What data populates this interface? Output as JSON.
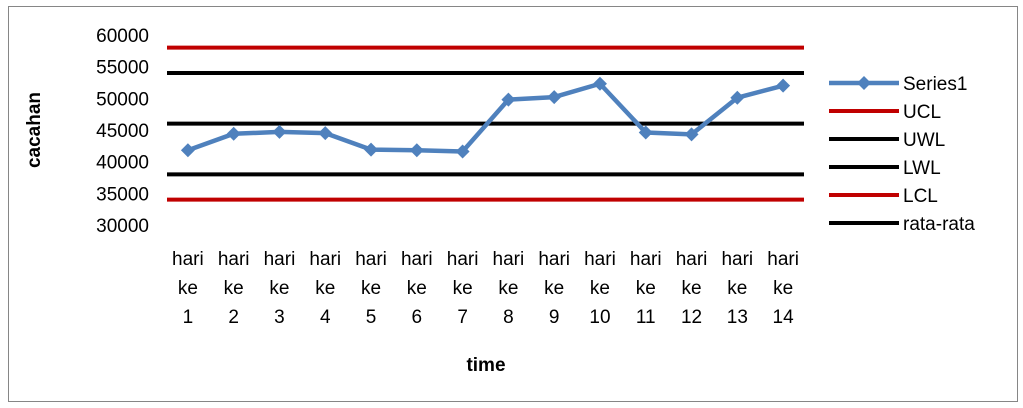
{
  "chart_data": {
    "type": "line",
    "title": "",
    "xlabel": "time",
    "ylabel": "cacahan",
    "ylim": [
      30000,
      60000
    ],
    "yticks": [
      30000,
      35000,
      40000,
      45000,
      50000,
      55000,
      60000
    ],
    "grid": false,
    "legend": "right",
    "categories": [
      [
        "hari",
        "ke",
        "1"
      ],
      [
        "hari",
        "ke",
        "2"
      ],
      [
        "hari",
        "ke",
        "3"
      ],
      [
        "hari",
        "ke",
        "4"
      ],
      [
        "hari",
        "ke",
        "5"
      ],
      [
        "hari",
        "ke",
        "6"
      ],
      [
        "hari",
        "ke",
        "7"
      ],
      [
        "hari",
        "ke",
        "8"
      ],
      [
        "hari",
        "ke",
        "9"
      ],
      [
        "hari",
        "ke",
        "10"
      ],
      [
        "hari",
        "ke",
        "11"
      ],
      [
        "hari",
        "ke",
        "12"
      ],
      [
        "hari",
        "ke",
        "13"
      ],
      [
        "hari",
        "ke",
        "14"
      ]
    ],
    "series": [
      {
        "name": "Series1",
        "color": "#4f81bd",
        "marker": "diamond",
        "values": [
          41800,
          44400,
          44700,
          44500,
          41900,
          41800,
          41600,
          49800,
          50200,
          52300,
          44600,
          44300,
          50100,
          52000
        ]
      },
      {
        "name": "UCL",
        "color": "#c00000",
        "constant": 58000
      },
      {
        "name": "UWL",
        "color": "#000000",
        "constant": 54000
      },
      {
        "name": "LWL",
        "color": "#000000",
        "constant": 38000
      },
      {
        "name": "LCL",
        "color": "#c00000",
        "constant": 34000
      },
      {
        "name": "rata-rata",
        "color": "#000000",
        "constant": 46000
      }
    ]
  }
}
